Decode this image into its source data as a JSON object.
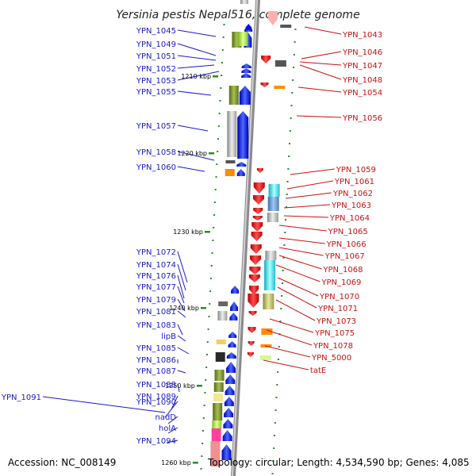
{
  "title": "Yersinia pestis Nepal516, complete genome",
  "footer": {
    "accession": "Accession: NC_008149",
    "summary": "Topology: circular; Length: 4,534,590 bp; Genes: 4,085"
  },
  "ticks": [
    "1210 kbp",
    "1220 kbp",
    "1230 kbp",
    "1240 kbp",
    "1250 kbp",
    "1260 kbp"
  ],
  "left_labels": [
    "YPN_1045",
    "YPN_1049",
    "YPN_1051",
    "YPN_1052",
    "YPN_1053",
    "YPN_1055",
    "YPN_1057",
    "YPN_1058",
    "YPN_1060",
    "YPN_1072",
    "YPN_1074",
    "YPN_1076",
    "YPN_1077",
    "YPN_1079",
    "YPN_1081",
    "YPN_1083",
    "lipB",
    "YPN_1085",
    "YPN_1086",
    "YPN_1087",
    "YPN_1088",
    "YPN_1089",
    "YPN_1091",
    "YPN_1090",
    "nadD",
    "holA",
    "YPN_1094"
  ],
  "right_labels": [
    "YPN_1043",
    "YPN_1046",
    "YPN_1047",
    "YPN_1048",
    "YPN_1054",
    "YPN_1056",
    "YPN_1059",
    "YPN_1061",
    "YPN_1062",
    "YPN_1063",
    "YPN_1064",
    "YPN_1065",
    "YPN_1066",
    "YPN_1067",
    "YPN_1068",
    "YPN_1069",
    "YPN_1070",
    "YPN_1071",
    "YPN_1073",
    "YPN_1075",
    "YPN_1078",
    "YPN_5000",
    "tatE"
  ],
  "colors": {
    "forward": "#1010e0",
    "reverse": "#e01010",
    "backbone": "#8a8a8a",
    "gc": "#2a8a2a"
  }
}
